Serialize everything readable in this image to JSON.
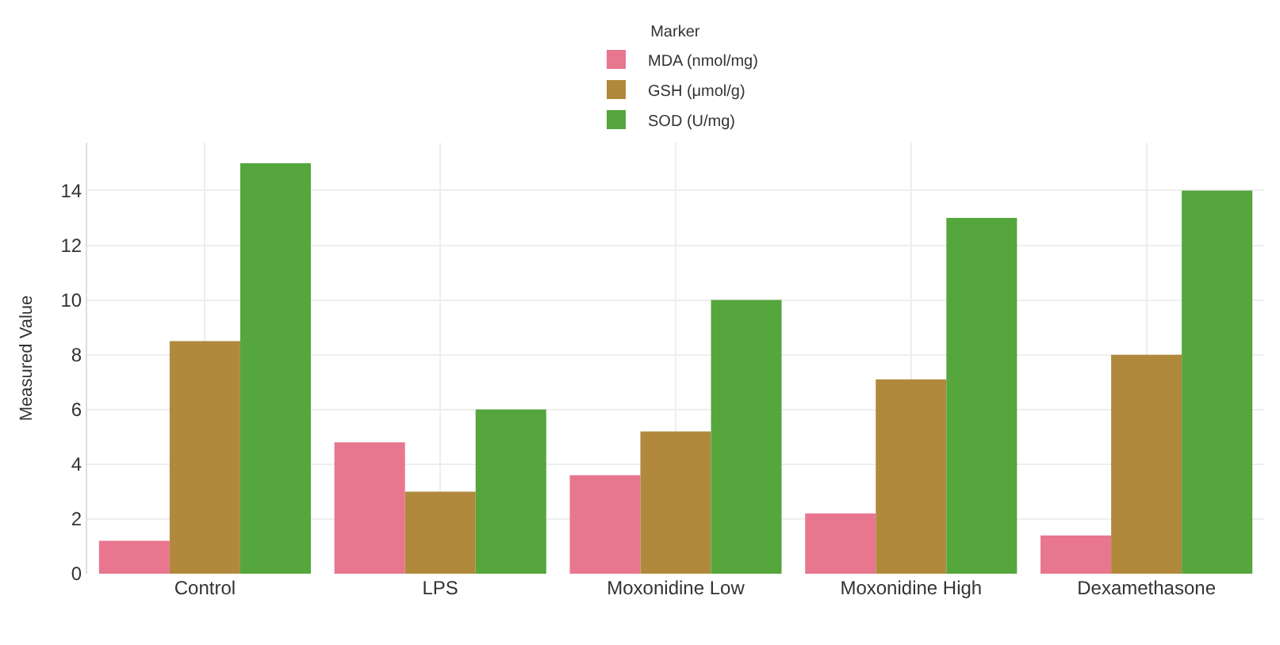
{
  "chart_data": {
    "type": "bar",
    "ylabel": "Measured Value",
    "legend_title": "Marker",
    "categories": [
      "Control",
      "LPS",
      "Moxonidine Low",
      "Moxonidine High",
      "Dexamethasone"
    ],
    "series": [
      {
        "name": "MDA (nmol/mg)",
        "color": "#e8768e",
        "values": [
          1.2,
          4.8,
          3.6,
          2.2,
          1.4
        ]
      },
      {
        "name": "GSH (μmol/g)",
        "color": "#b0893c",
        "values": [
          8.5,
          3.0,
          5.2,
          7.1,
          8.0
        ]
      },
      {
        "name": "SOD (U/mg)",
        "color": "#55a63d",
        "values": [
          15.0,
          6.0,
          10.0,
          13.0,
          14.0
        ]
      }
    ],
    "ylim": [
      0,
      15.75
    ],
    "yticks": [
      0,
      2,
      4,
      6,
      8,
      10,
      12,
      14
    ],
    "grid": true,
    "legend": "top"
  }
}
